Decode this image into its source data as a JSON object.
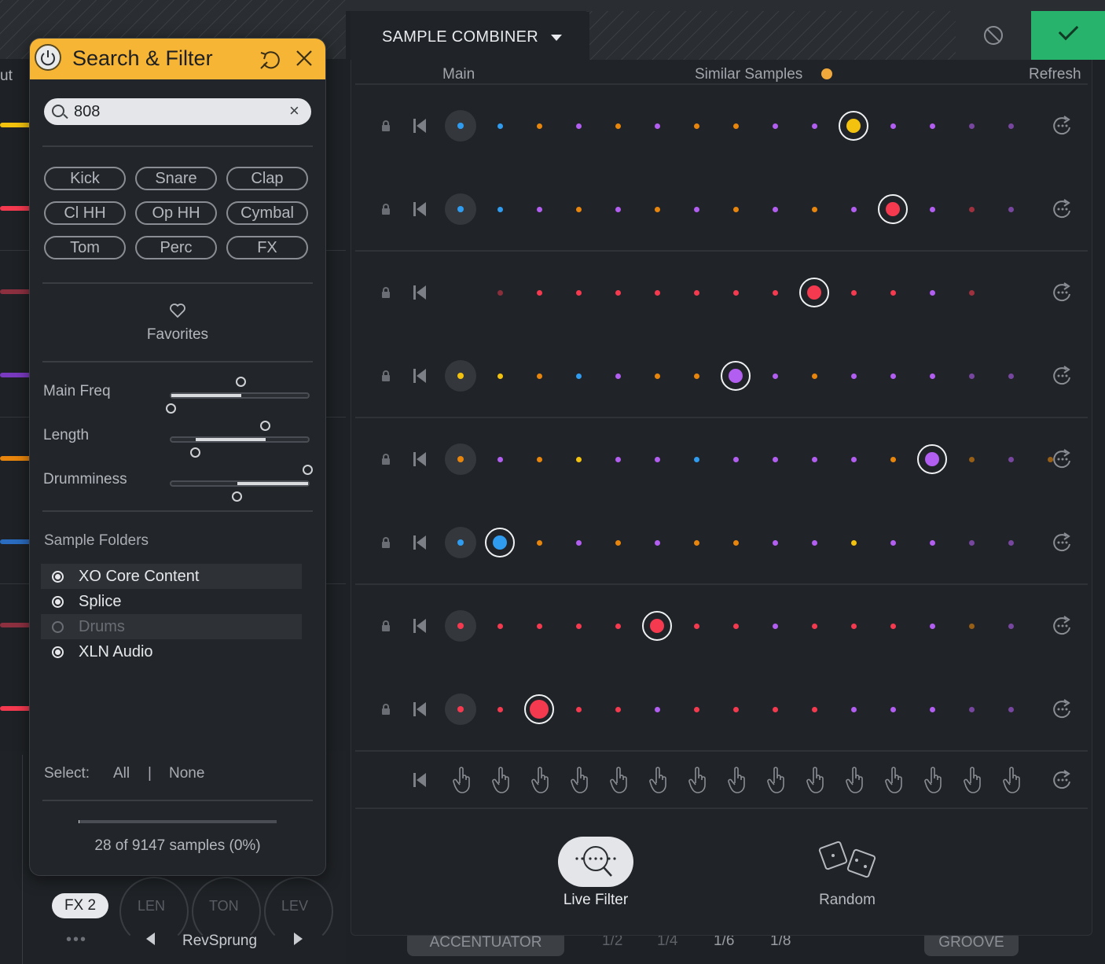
{
  "background": {
    "partial_label": "ut",
    "fx_button": "FX 2",
    "knob_labels": [
      "LEN",
      "TON",
      "LEV"
    ],
    "preset_name": "RevSprung",
    "accentuator": "ACCENTUATOR",
    "fractions": [
      "1/2",
      "1/4",
      "1/6",
      "1/8"
    ],
    "groove": "GROOVE"
  },
  "panel": {
    "title": "SAMPLE COMBINER",
    "col_main": "Main",
    "col_similar": "Similar Samples",
    "col_refresh": "Refresh"
  },
  "colors": {
    "blue": "#2f9cf0",
    "orange": "#e8850c",
    "purple": "#b25ef0",
    "yellow": "#f3c20e",
    "red": "#f53a50",
    "accent": "#f7b535",
    "confirm": "#27b36c"
  },
  "rows": [
    {
      "main": "blue",
      "dots": [
        "blue",
        "orange",
        "purple",
        "orange",
        "purple",
        "orange",
        "orange",
        "purple",
        "purple",
        "yellow",
        "purple",
        "purple",
        "purple",
        "purple"
      ],
      "selected": 9,
      "sep_after": false
    },
    {
      "main": "blue",
      "dots": [
        "blue",
        "purple",
        "orange",
        "purple",
        "orange",
        "purple",
        "orange",
        "purple",
        "orange",
        "purple",
        "red",
        "purple",
        "red",
        "purple"
      ],
      "selected": 10,
      "sep_after": true
    },
    {
      "main": null,
      "dots": [
        "red",
        "red",
        "red",
        "red",
        "red",
        "red",
        "red",
        "red",
        "red",
        "red",
        "red",
        "purple",
        "red",
        null
      ],
      "first_dim": true,
      "selected": 8,
      "sep_after": false
    },
    {
      "main": "yellow",
      "dots": [
        "yellow",
        "orange",
        "blue",
        "purple",
        "orange",
        "orange",
        "purple",
        "purple",
        "orange",
        "purple",
        "purple",
        "purple",
        "purple",
        "purple"
      ],
      "selected": 6,
      "sep_after": true
    },
    {
      "main": "orange",
      "dots": [
        "purple",
        "orange",
        "yellow",
        "purple",
        "purple",
        "blue",
        "purple",
        "purple",
        "purple",
        "purple",
        "orange",
        "purple",
        "orange",
        "purple",
        "orange"
      ],
      "selected": 11,
      "sep_after": false
    },
    {
      "main": "blue",
      "dots": [
        "blue",
        "orange",
        "purple",
        "orange",
        "purple",
        "orange",
        "orange",
        "purple",
        "purple",
        "yellow",
        "purple",
        "purple",
        "purple",
        "purple"
      ],
      "selected": 0,
      "sep_after": true
    },
    {
      "main": "red",
      "dots": [
        "red",
        "red",
        "red",
        "red",
        "red",
        "red",
        "red",
        "purple",
        "red",
        "red",
        "red",
        "purple",
        "orange",
        "purple"
      ],
      "selected": 4,
      "sep_after": false
    },
    {
      "main": "red",
      "dots": [
        "red",
        "red",
        "red",
        "red",
        "purple",
        "red",
        "red",
        "red",
        "red",
        "purple",
        "purple",
        "purple",
        "purple",
        "purple"
      ],
      "selected": 1,
      "big": true,
      "sep_after": true
    }
  ],
  "modes": {
    "live_filter": "Live Filter",
    "random": "Random"
  },
  "search_filter": {
    "title": "Search & Filter",
    "search_value": "808",
    "tags": [
      "Kick",
      "Snare",
      "Clap",
      "Cl HH",
      "Op HH",
      "Cymbal",
      "Tom",
      "Perc",
      "FX"
    ],
    "favorites": "Favorites",
    "sliders": [
      {
        "label": "Main Freq",
        "from": 0.0,
        "to": 0.51
      },
      {
        "label": "Length",
        "from": 0.18,
        "to": 0.69
      },
      {
        "label": "Drumminess",
        "from": 0.48,
        "to": 1.0
      }
    ],
    "folders_title": "Sample Folders",
    "folders": [
      {
        "name": "XO Core Content",
        "enabled": true
      },
      {
        "name": "Splice",
        "enabled": true
      },
      {
        "name": "Drums",
        "enabled": false
      },
      {
        "name": "XLN Audio",
        "enabled": true
      }
    ],
    "select_label": "Select:",
    "select_all": "All",
    "select_sep": "|",
    "select_none": "None",
    "count_text": "28 of 9147 samples (0%)",
    "count_fraction": 0.003
  }
}
